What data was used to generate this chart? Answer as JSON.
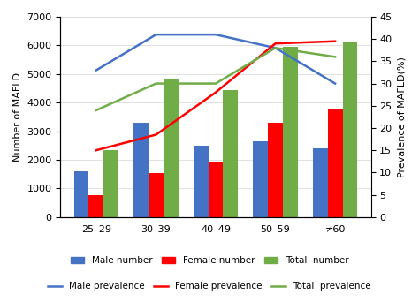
{
  "categories": [
    "25–29",
    "30–39",
    "40–49",
    "50–59",
    "≠60"
  ],
  "male_number": [
    1600,
    3300,
    2500,
    2650,
    2400
  ],
  "female_number": [
    750,
    1550,
    1950,
    3300,
    3750
  ],
  "total_number": [
    2350,
    4850,
    4450,
    5950,
    6150
  ],
  "male_prevalence": [
    33,
    41,
    41,
    38,
    30
  ],
  "female_prevalence": [
    15,
    18.5,
    28,
    39,
    39.5
  ],
  "total_prevalence": [
    24,
    30,
    30,
    38,
    36
  ],
  "bar_colors": [
    "#4472C4",
    "#FF0000",
    "#70AD47"
  ],
  "line_colors": [
    "#4472C4",
    "#FF0000",
    "#70AD47"
  ],
  "ylim_left": [
    0,
    7000
  ],
  "ylim_right": [
    0,
    45
  ],
  "ylabel_left": "Number of MAFLD",
  "ylabel_right": "Prevalence of MAFLD(%)",
  "legend_bar": [
    "Male number",
    "Female number",
    "Total  number"
  ],
  "legend_line": [
    "Male prevalence",
    "Female prevalence",
    "Total  prevalence"
  ],
  "bar_width": 0.25,
  "background_color": "#ffffff"
}
